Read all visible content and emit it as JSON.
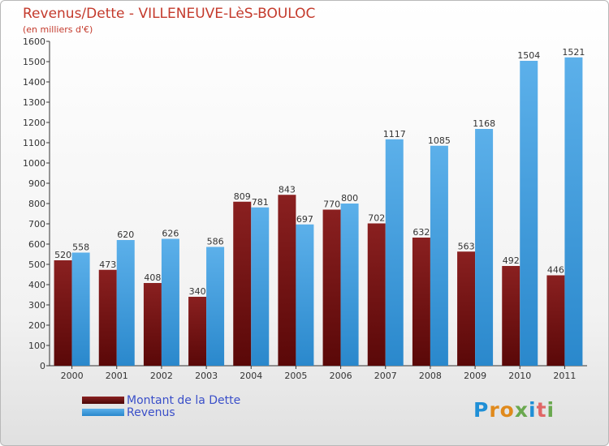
{
  "header": {
    "title": "Revenus/Dette - VILLENEUVE-LèS-BOULOC",
    "subtitle": "(en milliers d'€)"
  },
  "legend": {
    "dette_label": "Montant de la Dette",
    "revenus_label": "Revenus"
  },
  "brand": {
    "letters": [
      "P",
      "r",
      "o",
      "x",
      "i",
      "t",
      "i"
    ],
    "colors": [
      "#1f8fd6",
      "#e08a1c",
      "#e08a1c",
      "#6aa84f",
      "#1f8fd6",
      "#e06666",
      "#6aa84f"
    ]
  },
  "colors": {
    "dette": "#6e0f0f",
    "revenus": "#3c9ce0",
    "title": "#c43a2c",
    "legend_text": "#3a4fc9"
  },
  "chart_data": {
    "type": "bar",
    "title": "Revenus/Dette - VILLENEUVE-LèS-BOULOC",
    "subtitle": "(en milliers d'€)",
    "xlabel": "",
    "ylabel": "",
    "ylim": [
      0,
      1600
    ],
    "ytick_step": 100,
    "grid": false,
    "legend_position": "bottom-left",
    "categories": [
      "2000",
      "2001",
      "2002",
      "2003",
      "2004",
      "2005",
      "2006",
      "2007",
      "2008",
      "2009",
      "2010",
      "2011"
    ],
    "series": [
      {
        "name": "Montant de la Dette",
        "values": [
          520,
          473,
          408,
          340,
          809,
          843,
          770,
          702,
          632,
          563,
          492,
          446
        ]
      },
      {
        "name": "Revenus",
        "values": [
          558,
          620,
          626,
          586,
          781,
          697,
          800,
          1117,
          1085,
          1168,
          1504,
          1521
        ]
      }
    ]
  }
}
